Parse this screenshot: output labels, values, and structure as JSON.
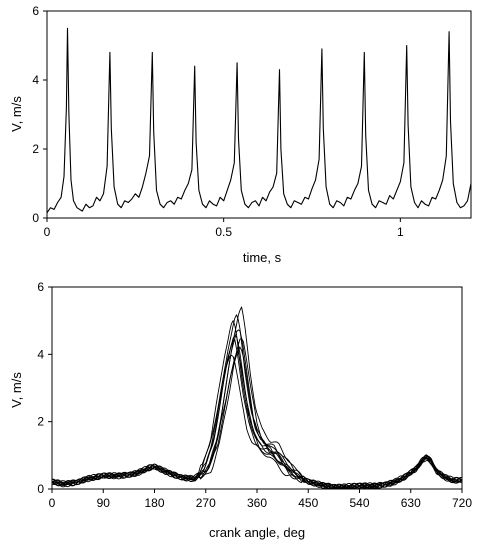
{
  "chart_data": [
    {
      "type": "line",
      "title": "",
      "xlabel": "time, s",
      "ylabel": "V, m/s",
      "xlim": [
        0,
        1.2
      ],
      "ylim": [
        0,
        6
      ],
      "xticks": [
        0,
        0.5,
        1
      ],
      "xtick_labels": [
        "0",
        "0.5",
        "1"
      ],
      "yticks": [
        0,
        2,
        4,
        6
      ],
      "ytick_labels": [
        "0",
        "2",
        "4",
        "6"
      ],
      "grid": false,
      "peak_times": [
        0.058,
        0.178,
        0.298,
        0.418,
        0.538,
        0.658,
        0.778,
        0.898,
        1.018,
        1.138
      ],
      "peak_values": [
        5.5,
        4.8,
        4.8,
        4.4,
        4.5,
        4.3,
        4.9,
        4.8,
        5.0,
        5.4
      ],
      "series": [
        {
          "x": [
            0.0,
            0.01,
            0.02,
            0.03,
            0.04,
            0.048,
            0.055,
            0.058,
            0.062,
            0.068,
            0.075,
            0.085,
            0.1,
            0.11,
            0.12,
            0.13,
            0.14,
            0.15,
            0.16,
            0.17,
            0.178,
            0.182,
            0.19,
            0.2,
            0.21,
            0.22,
            0.23,
            0.24,
            0.25,
            0.26,
            0.27,
            0.28,
            0.29,
            0.298,
            0.302,
            0.31,
            0.32,
            0.33,
            0.34,
            0.35,
            0.36,
            0.37,
            0.38,
            0.39,
            0.4,
            0.41,
            0.418,
            0.422,
            0.43,
            0.44,
            0.45,
            0.46,
            0.47,
            0.48,
            0.49,
            0.5,
            0.51,
            0.52,
            0.53,
            0.538,
            0.542,
            0.55,
            0.56,
            0.57,
            0.58,
            0.59,
            0.6,
            0.61,
            0.62,
            0.63,
            0.64,
            0.65,
            0.658,
            0.662,
            0.67,
            0.68,
            0.69,
            0.7,
            0.71,
            0.72,
            0.73,
            0.74,
            0.75,
            0.76,
            0.77,
            0.778,
            0.782,
            0.79,
            0.8,
            0.81,
            0.82,
            0.83,
            0.84,
            0.85,
            0.86,
            0.87,
            0.88,
            0.89,
            0.898,
            0.902,
            0.91,
            0.92,
            0.93,
            0.94,
            0.95,
            0.96,
            0.97,
            0.98,
            0.99,
            1.0,
            1.01,
            1.018,
            1.022,
            1.03,
            1.04,
            1.05,
            1.06,
            1.07,
            1.08,
            1.09,
            1.1,
            1.11,
            1.12,
            1.13,
            1.138,
            1.142,
            1.15,
            1.16,
            1.17,
            1.18,
            1.19,
            1.2
          ],
          "y": [
            0.15,
            0.3,
            0.25,
            0.45,
            0.6,
            1.2,
            3.2,
            5.5,
            3.0,
            1.1,
            0.5,
            0.3,
            0.2,
            0.4,
            0.3,
            0.35,
            0.6,
            0.5,
            0.7,
            1.5,
            4.8,
            2.6,
            0.9,
            0.4,
            0.3,
            0.5,
            0.45,
            0.55,
            0.7,
            0.6,
            0.9,
            1.3,
            1.8,
            4.8,
            2.5,
            0.8,
            0.4,
            0.3,
            0.45,
            0.5,
            0.4,
            0.6,
            0.55,
            0.8,
            1.0,
            1.4,
            4.4,
            2.2,
            0.8,
            0.4,
            0.3,
            0.5,
            0.4,
            0.35,
            0.6,
            0.5,
            0.8,
            1.1,
            1.6,
            4.5,
            2.3,
            0.8,
            0.4,
            0.3,
            0.45,
            0.5,
            0.35,
            0.6,
            0.5,
            0.75,
            0.9,
            1.3,
            4.3,
            2.0,
            0.7,
            0.4,
            0.3,
            0.5,
            0.45,
            0.4,
            0.6,
            0.55,
            0.85,
            1.1,
            1.7,
            4.9,
            2.6,
            0.9,
            0.4,
            0.3,
            0.5,
            0.45,
            0.35,
            0.6,
            0.55,
            0.8,
            1.0,
            1.5,
            4.8,
            2.4,
            0.8,
            0.4,
            0.3,
            0.5,
            0.45,
            0.4,
            0.65,
            0.55,
            0.8,
            1.05,
            1.6,
            5.0,
            2.7,
            0.9,
            0.45,
            0.3,
            0.5,
            0.4,
            0.35,
            0.6,
            0.55,
            0.8,
            1.1,
            1.8,
            5.4,
            2.8,
            1.0,
            0.45,
            0.3,
            0.35,
            0.5,
            1.0
          ]
        }
      ]
    },
    {
      "type": "line",
      "title": "",
      "xlabel": "crank angle, deg",
      "ylabel": "V, m/s",
      "xlim": [
        0,
        720
      ],
      "ylim": [
        0,
        6
      ],
      "xticks": [
        0,
        90,
        180,
        270,
        360,
        450,
        540,
        630,
        720
      ],
      "xtick_labels": [
        "0",
        "90",
        "180",
        "270",
        "360",
        "450",
        "540",
        "630",
        "720"
      ],
      "yticks": [
        0,
        2,
        4,
        6
      ],
      "ytick_labels": [
        "0",
        "2",
        "4",
        "6"
      ],
      "grid": false,
      "base_curve": {
        "x": [
          0,
          20,
          40,
          60,
          90,
          120,
          150,
          170,
          180,
          195,
          210,
          230,
          250,
          270,
          285,
          300,
          310,
          320,
          325,
          330,
          340,
          350,
          360,
          375,
          390,
          400,
          420,
          450,
          480,
          510,
          540,
          570,
          600,
          620,
          640,
          650,
          658,
          665,
          675,
          690,
          705,
          720
        ],
        "y": [
          0.2,
          0.15,
          0.2,
          0.3,
          0.38,
          0.4,
          0.48,
          0.62,
          0.65,
          0.55,
          0.45,
          0.35,
          0.3,
          0.6,
          1.4,
          2.8,
          3.8,
          4.5,
          4.6,
          4.2,
          3.0,
          2.0,
          1.5,
          1.2,
          1.1,
          0.9,
          0.5,
          0.2,
          0.1,
          0.06,
          0.08,
          0.1,
          0.2,
          0.35,
          0.6,
          0.85,
          0.95,
          0.85,
          0.55,
          0.35,
          0.25,
          0.25
        ]
      },
      "cycle_count": 10,
      "cycle_peak_values": [
        5.4,
        5.2,
        5.0,
        4.8,
        4.6,
        4.5,
        4.4,
        4.3,
        4.1,
        4.0
      ],
      "cycle_peak_shift_deg": [
        8,
        0,
        -6,
        4,
        -2,
        10,
        -4,
        6,
        -8,
        2
      ]
    }
  ]
}
